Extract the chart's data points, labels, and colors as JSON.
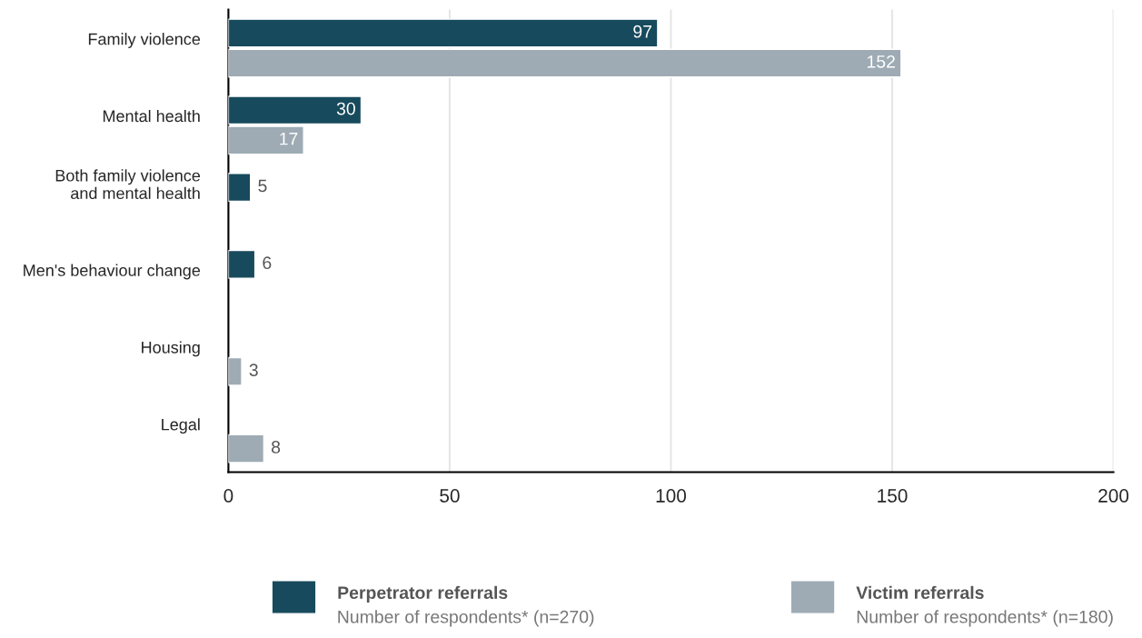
{
  "chart_data": {
    "type": "bar",
    "orientation": "horizontal",
    "categories": [
      "Family violence",
      "Mental health",
      "Both family violence\nand mental health",
      "Men's behaviour change",
      "Housing",
      "Legal"
    ],
    "series": [
      {
        "name": "Perpetrator referrals",
        "color": "#174a5c",
        "values": [
          97,
          30,
          5,
          6,
          null,
          null
        ]
      },
      {
        "name": "Victim referrals",
        "color": "#9eabb4",
        "values": [
          152,
          17,
          null,
          null,
          3,
          8
        ]
      }
    ],
    "annotations": [
      "Number of respondents* (n=270)",
      "Number of respondents* (n=180)"
    ],
    "xlim": [
      0,
      200
    ],
    "xticks": [
      0,
      50,
      100,
      150,
      200
    ],
    "grid": "x",
    "legend": "bottom",
    "data_labels": true
  }
}
